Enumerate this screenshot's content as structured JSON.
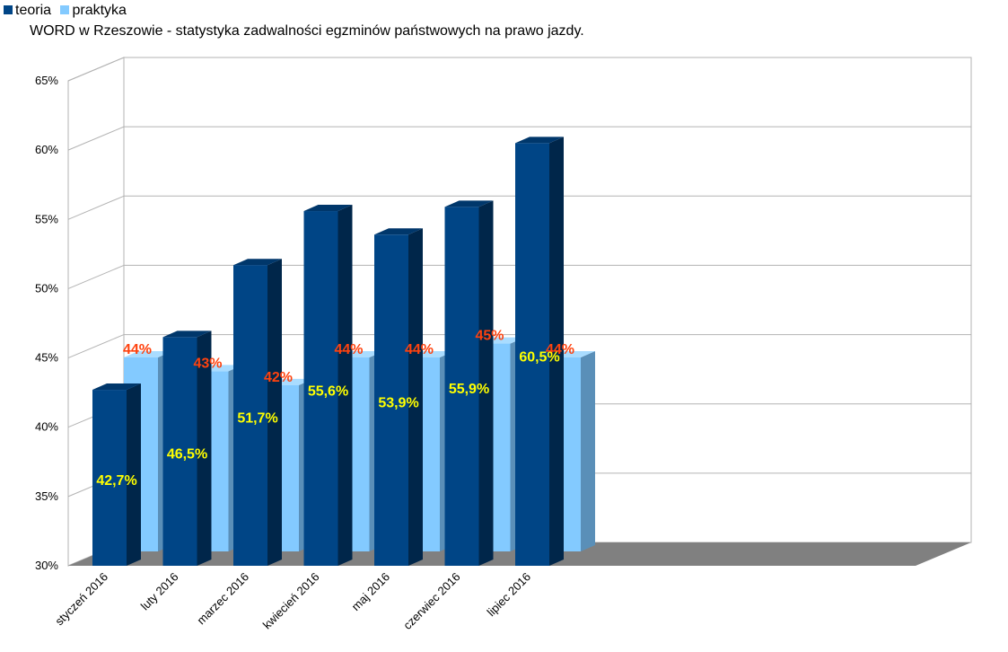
{
  "legend": {
    "items": [
      {
        "label": "teoria",
        "color": "#004586"
      },
      {
        "label": "praktyka",
        "color": "#83caff"
      }
    ]
  },
  "title": "WORD w Rzeszowie - statystyka zadwalności egzminów państwowych na prawo jazdy.",
  "chart_data": {
    "type": "bar",
    "title": "WORD w Rzeszowie - statystyka zadwalności egzminów państwowych na prawo jazdy.",
    "xlabel": "",
    "ylabel": "",
    "ylim": [
      30,
      65
    ],
    "yticks": [
      "30%",
      "35%",
      "40%",
      "45%",
      "50%",
      "55%",
      "60%",
      "65%"
    ],
    "categories": [
      "styczeń 2016",
      "luty 2016",
      "marzec 2016",
      "kwiecień 2016",
      "maj 2016",
      "czerwiec 2016",
      "lipiec 2016"
    ],
    "series": [
      {
        "name": "teoria",
        "color": "#004586",
        "values": [
          42.7,
          46.5,
          51.7,
          55.6,
          53.9,
          55.9,
          60.5
        ],
        "labels": [
          "42,7%",
          "46,5%",
          "51,7%",
          "55,6%",
          "53,9%",
          "55,9%",
          "60,5%"
        ],
        "label_color": "#ffff00"
      },
      {
        "name": "praktyka",
        "color": "#83caff",
        "values": [
          44,
          43,
          42,
          44,
          44,
          45,
          44
        ],
        "labels": [
          "44%",
          "43%",
          "42%",
          "44%",
          "44%",
          "45%",
          "44%"
        ],
        "label_color": "#ff420e"
      }
    ],
    "grid": true,
    "style": "3d",
    "legend_position": "top-left"
  }
}
